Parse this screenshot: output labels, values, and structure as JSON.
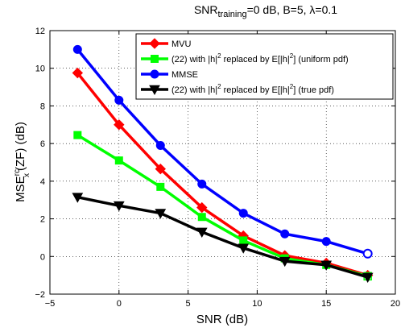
{
  "chart_data": {
    "type": "line",
    "title_main": "SNR",
    "title_sub": "training",
    "title_rest": "=0 dB, B=5, λ=0.1",
    "xlabel": "SNR (dB)",
    "ylabel_main": "MSE",
    "ylabel_super": "rc",
    "ylabel_sub": "x",
    "ylabel_rest": "(ZF) (dB)",
    "xlim": [
      -5,
      20
    ],
    "ylim": [
      -2,
      12
    ],
    "xticks": [
      -5,
      0,
      5,
      10,
      15,
      20
    ],
    "yticks": [
      -2,
      0,
      2,
      4,
      6,
      8,
      10,
      12
    ],
    "grid": true,
    "legend_position": "top-right",
    "series": [
      {
        "name": "MVU",
        "color": "#ff0000",
        "marker": "diamond",
        "x": [
          -3,
          0,
          3,
          6,
          9,
          12,
          15,
          18
        ],
        "y": [
          9.75,
          7.0,
          4.65,
          2.6,
          1.1,
          0.05,
          -0.35,
          -1.0
        ]
      },
      {
        "name": "(22) with |h|^2 replaced by E[|h|^2] (uniform pdf)",
        "legend_parts": [
          "(22) with |h|",
          "2",
          " replaced by E[|h|",
          "2",
          "] (uniform pdf)"
        ],
        "color": "#00ff00",
        "marker": "square",
        "x": [
          -3,
          0,
          3,
          6,
          9,
          12,
          15,
          18
        ],
        "y": [
          6.45,
          5.1,
          3.7,
          2.1,
          0.85,
          -0.1,
          -0.45,
          -1.05
        ]
      },
      {
        "name": "MMSE",
        "color": "#0000ff",
        "marker": "circle",
        "x": [
          -3,
          0,
          3,
          6,
          9,
          12,
          15,
          18
        ],
        "y": [
          11.0,
          8.3,
          5.9,
          3.85,
          2.3,
          1.2,
          0.8,
          0.15
        ]
      },
      {
        "name": "(22) with |h|^2 replaced by E[|h|^2] (true pdf)",
        "legend_parts": [
          "(22) with |h|",
          "2",
          " replaced by E[|h|",
          "2",
          "] (true pdf)"
        ],
        "color": "#000000",
        "marker": "triangle-down",
        "x": [
          -3,
          0,
          3,
          6,
          9,
          12,
          15,
          18
        ],
        "y": [
          3.15,
          2.7,
          2.3,
          1.3,
          0.45,
          -0.25,
          -0.45,
          -1.1
        ]
      }
    ]
  }
}
